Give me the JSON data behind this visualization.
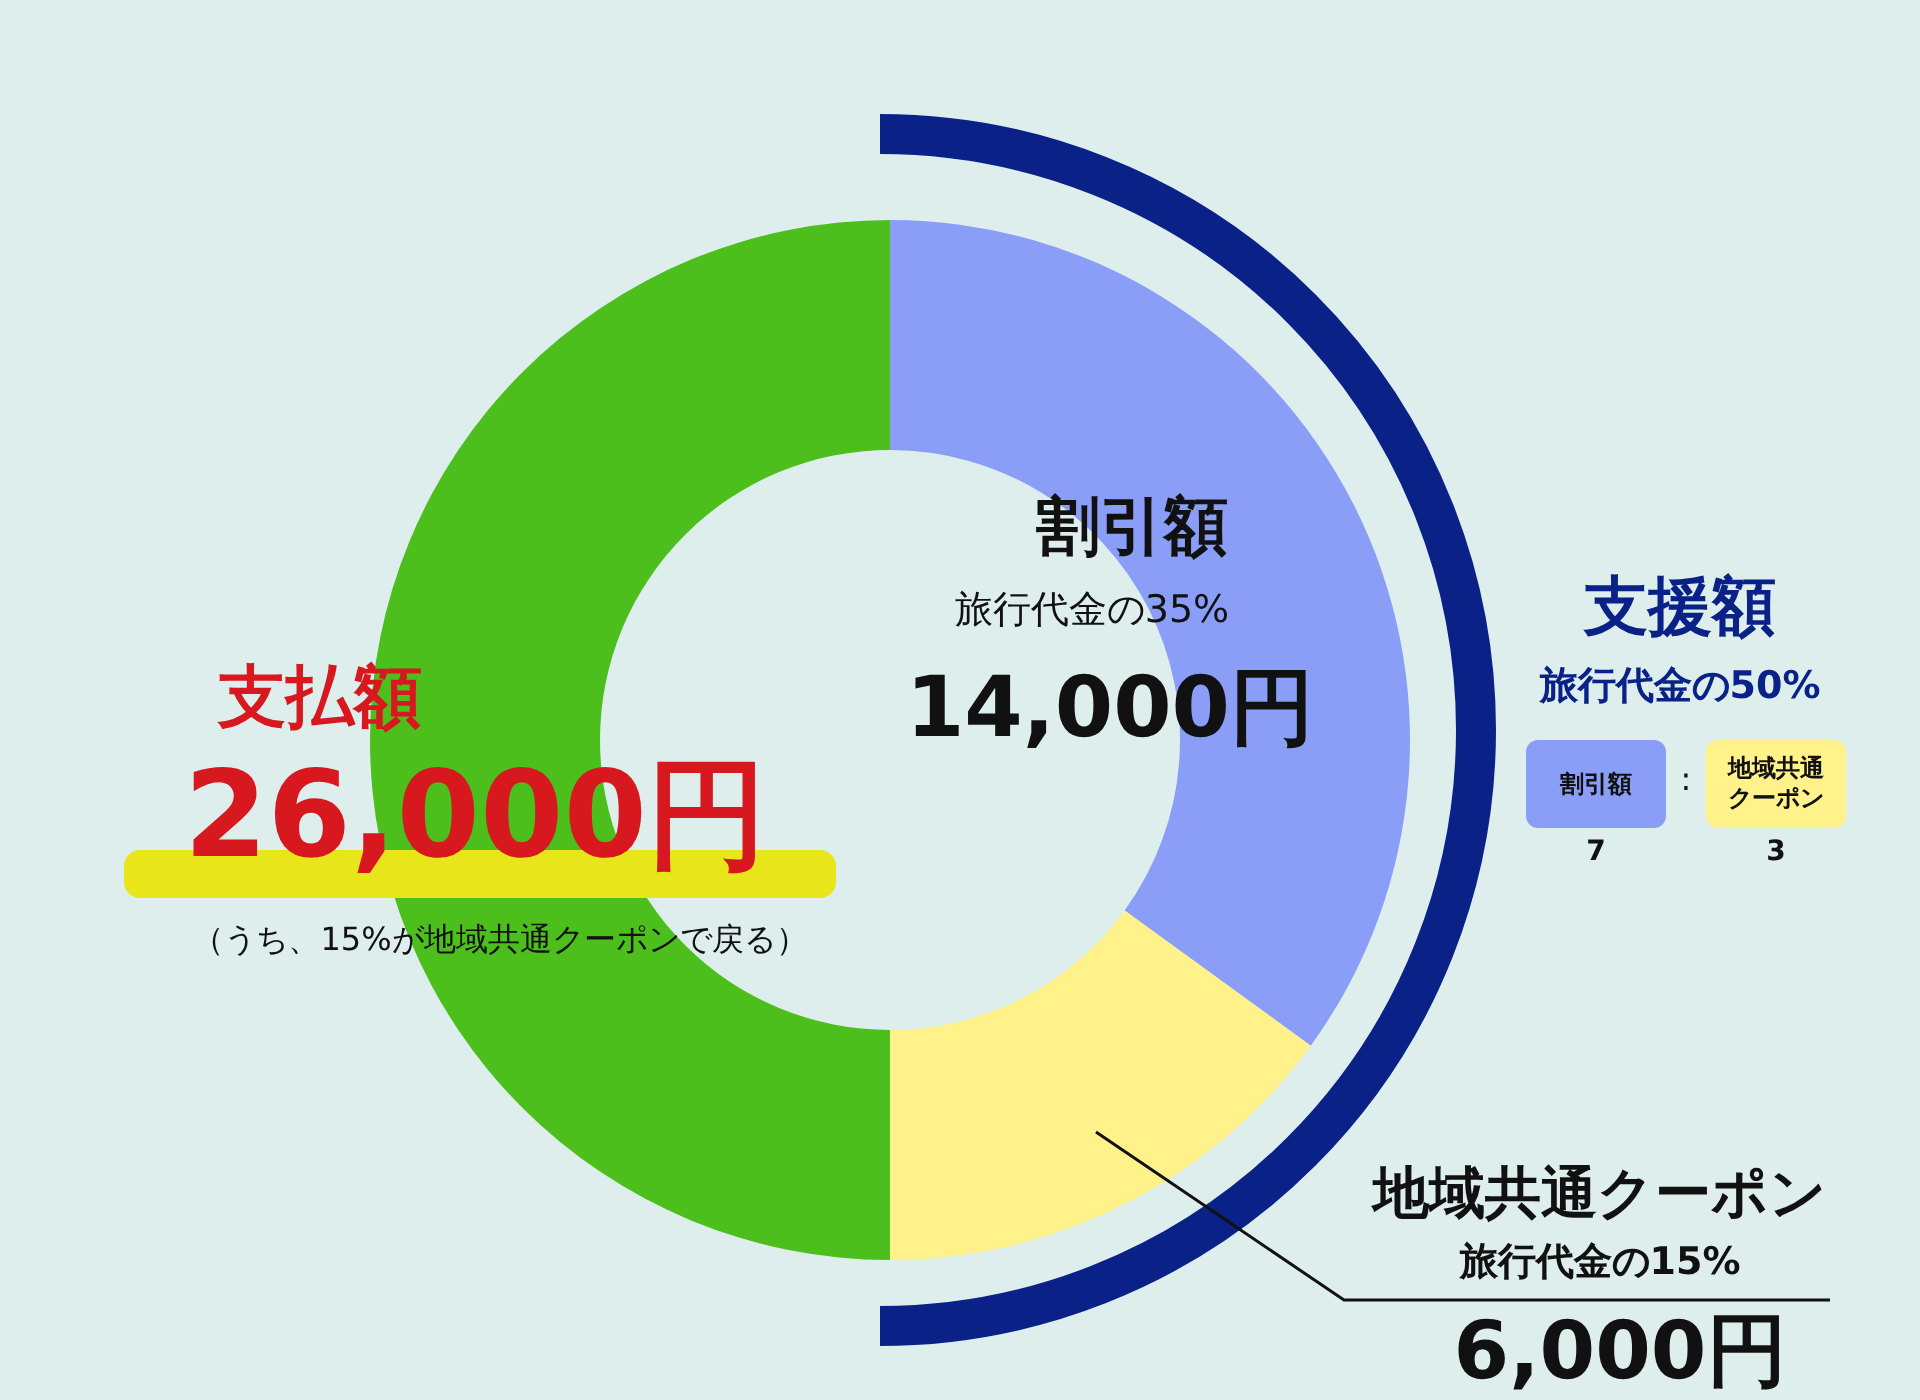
{
  "chart_data": {
    "type": "donut",
    "categories": [
      "割引額",
      "地域共通クーポン",
      "支払額"
    ],
    "values": [
      35,
      15,
      50
    ],
    "colors": [
      "#8a9ef8",
      "#fff28a",
      "#4cbf1c"
    ],
    "annotations": [
      "旅行代金の35%",
      "14,000円",
      "26,000円",
      "（うち、15%が地域共通クーポンで戻る）",
      "支援額",
      "旅行代金の50%",
      "割引額",
      ":",
      "地域共通クーポン",
      "7",
      "3",
      "旅行代金の15%",
      "6,000円"
    ]
  }
}
